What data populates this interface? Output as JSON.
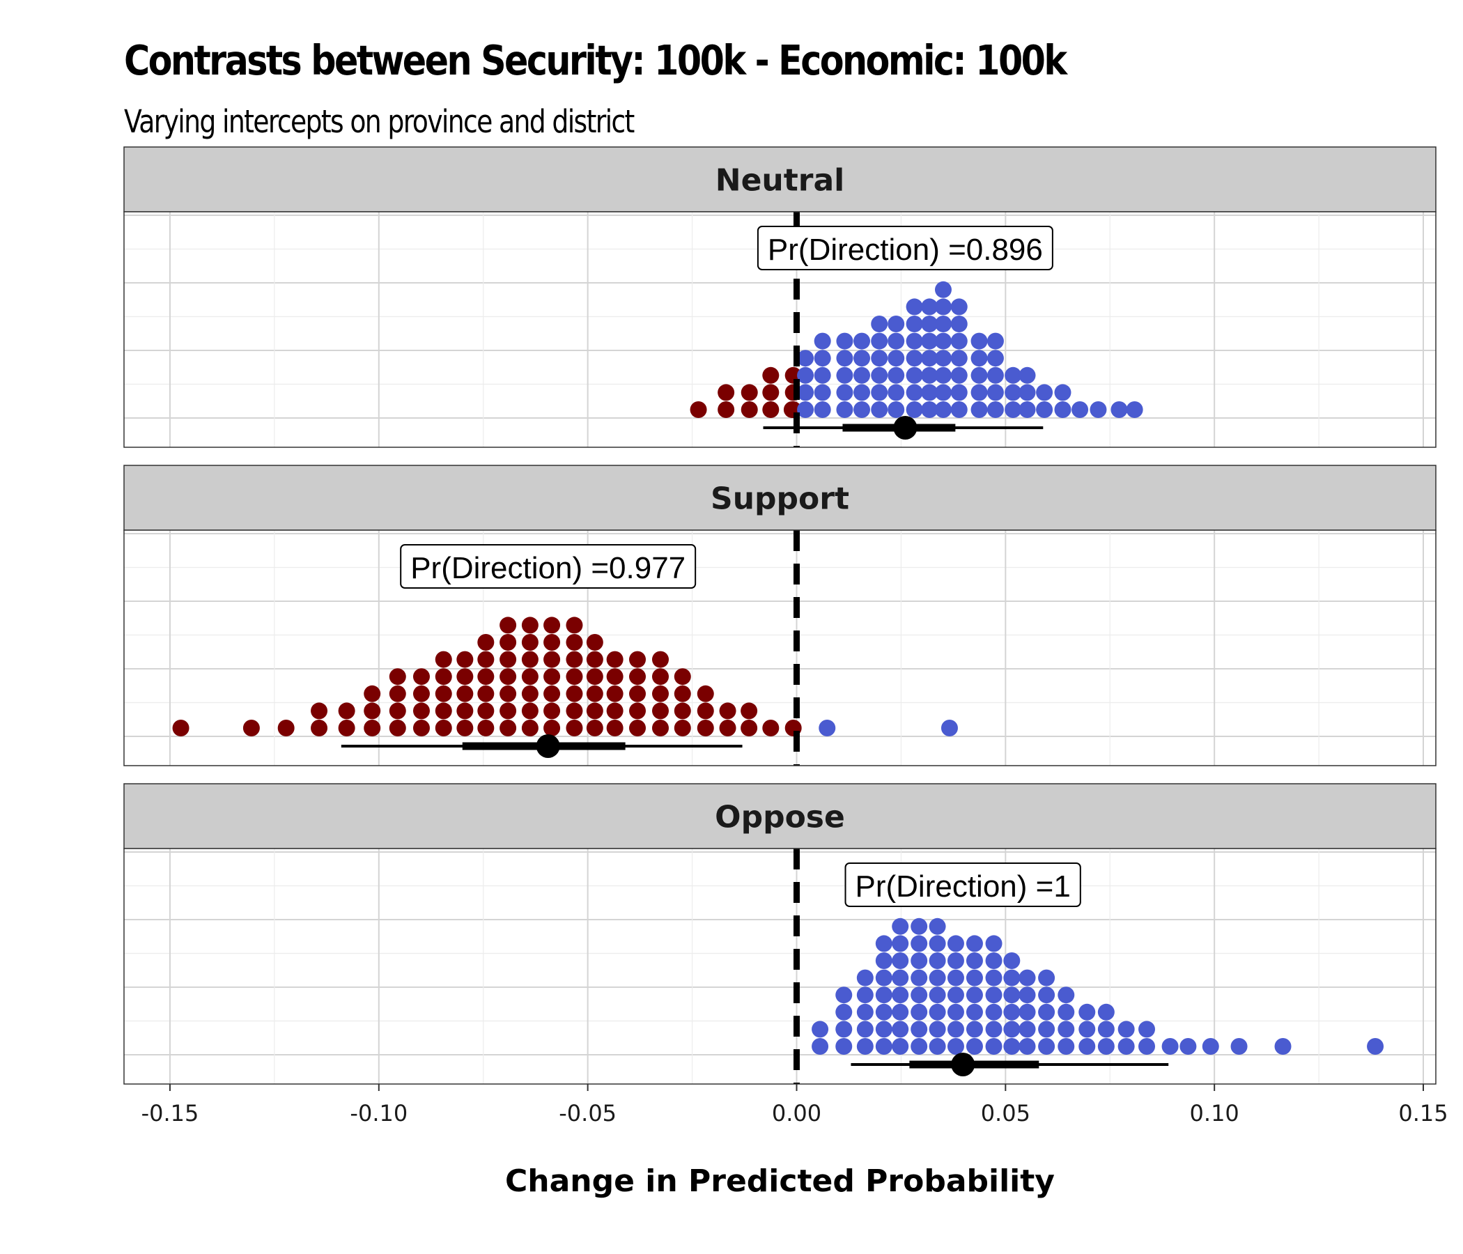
{
  "title": "Contrasts between Security: 100k - Economic: 100k",
  "subtitle": "Varying intercepts on province and district",
  "chart_data": {
    "type": "dotplot",
    "xlabel": "Change in Predicted Probability",
    "xlim": [
      -0.161,
      0.153
    ],
    "x_ticks": [
      -0.15,
      -0.1,
      -0.05,
      0.0,
      0.05,
      0.1,
      0.15
    ],
    "x_tick_labels": [
      "-0.15",
      "-0.10",
      "-0.05",
      "0.00",
      "0.05",
      "0.10",
      "0.15"
    ],
    "reference_line_x": 0.0,
    "grid": true,
    "colors": {
      "negative": "#7a0000",
      "positive": "#4a5bd0",
      "strip_fill": "#cccccc",
      "interval": "#000000"
    },
    "panels": [
      {
        "facet": "Neutral",
        "label": "Pr(Direction) =0.896",
        "label_x": 0.026,
        "point_estimate": 0.026,
        "interval_66": [
          0.011,
          0.038
        ],
        "interval_95": [
          -0.008,
          0.059
        ],
        "dot_columns": [
          {
            "x": -0.0235,
            "n": 1
          },
          {
            "x": -0.0169,
            "n": 2
          },
          {
            "x": -0.0113,
            "n": 2
          },
          {
            "x": -0.0062,
            "n": 3
          },
          {
            "x": -0.0008,
            "n": 3
          },
          {
            "x": -0.0011,
            "n": 1
          },
          {
            "x": 0.0021,
            "n": 4
          },
          {
            "x": 0.0062,
            "n": 5
          },
          {
            "x": 0.0115,
            "n": 5
          },
          {
            "x": 0.0156,
            "n": 5
          },
          {
            "x": 0.0198,
            "n": 6
          },
          {
            "x": 0.0238,
            "n": 6
          },
          {
            "x": 0.0282,
            "n": 7
          },
          {
            "x": 0.0318,
            "n": 7
          },
          {
            "x": 0.0351,
            "n": 8
          },
          {
            "x": 0.0389,
            "n": 7
          },
          {
            "x": 0.0437,
            "n": 5
          },
          {
            "x": 0.0476,
            "n": 5
          },
          {
            "x": 0.0518,
            "n": 3
          },
          {
            "x": 0.0552,
            "n": 3
          },
          {
            "x": 0.0593,
            "n": 2
          },
          {
            "x": 0.0637,
            "n": 2
          },
          {
            "x": 0.0678,
            "n": 1
          },
          {
            "x": 0.0722,
            "n": 1
          },
          {
            "x": 0.0772,
            "n": 1
          },
          {
            "x": 0.0809,
            "n": 1
          }
        ]
      },
      {
        "facet": "Support",
        "label": "Pr(Direction) =0.977",
        "label_x": -0.0595,
        "point_estimate": -0.0595,
        "interval_66": [
          -0.08,
          -0.041
        ],
        "interval_95": [
          -0.109,
          -0.013
        ],
        "dot_columns": [
          {
            "x": -0.1474,
            "n": 1
          },
          {
            "x": -0.1305,
            "n": 1
          },
          {
            "x": -0.1222,
            "n": 1
          },
          {
            "x": -0.1143,
            "n": 2
          },
          {
            "x": -0.1077,
            "n": 2
          },
          {
            "x": -0.1016,
            "n": 3
          },
          {
            "x": -0.0955,
            "n": 4
          },
          {
            "x": -0.0898,
            "n": 4
          },
          {
            "x": -0.0845,
            "n": 5
          },
          {
            "x": -0.0794,
            "n": 5
          },
          {
            "x": -0.0744,
            "n": 6
          },
          {
            "x": -0.0691,
            "n": 7
          },
          {
            "x": -0.0638,
            "n": 7
          },
          {
            "x": -0.0586,
            "n": 7
          },
          {
            "x": -0.0532,
            "n": 7
          },
          {
            "x": -0.0483,
            "n": 6
          },
          {
            "x": -0.0435,
            "n": 5
          },
          {
            "x": -0.0381,
            "n": 5
          },
          {
            "x": -0.0326,
            "n": 5
          },
          {
            "x": -0.0273,
            "n": 4
          },
          {
            "x": -0.0218,
            "n": 3
          },
          {
            "x": -0.0165,
            "n": 2
          },
          {
            "x": -0.0114,
            "n": 2
          },
          {
            "x": -0.0062,
            "n": 1
          },
          {
            "x": -0.0008,
            "n": 1
          },
          {
            "x": 0.0073,
            "n": 1
          },
          {
            "x": 0.0366,
            "n": 1
          }
        ]
      },
      {
        "facet": "Oppose",
        "label": "Pr(Direction) =1",
        "label_x": 0.0398,
        "point_estimate": 0.0398,
        "interval_66": [
          0.027,
          0.058
        ],
        "interval_95": [
          0.013,
          0.089
        ],
        "dot_columns": [
          {
            "x": 0.0056,
            "n": 2
          },
          {
            "x": 0.0113,
            "n": 4
          },
          {
            "x": 0.0164,
            "n": 5
          },
          {
            "x": 0.0209,
            "n": 7
          },
          {
            "x": 0.0248,
            "n": 8
          },
          {
            "x": 0.0293,
            "n": 8
          },
          {
            "x": 0.0337,
            "n": 8
          },
          {
            "x": 0.0381,
            "n": 7
          },
          {
            "x": 0.0426,
            "n": 7
          },
          {
            "x": 0.0472,
            "n": 7
          },
          {
            "x": 0.0515,
            "n": 6
          },
          {
            "x": 0.0552,
            "n": 5
          },
          {
            "x": 0.0598,
            "n": 5
          },
          {
            "x": 0.0645,
            "n": 4
          },
          {
            "x": 0.0695,
            "n": 3
          },
          {
            "x": 0.0741,
            "n": 3
          },
          {
            "x": 0.0789,
            "n": 2
          },
          {
            "x": 0.0838,
            "n": 2
          },
          {
            "x": 0.0894,
            "n": 1
          },
          {
            "x": 0.0937,
            "n": 1
          },
          {
            "x": 0.0991,
            "n": 1
          },
          {
            "x": 0.1059,
            "n": 1
          },
          {
            "x": 0.1164,
            "n": 1
          },
          {
            "x": 0.1385,
            "n": 1
          }
        ]
      }
    ]
  }
}
